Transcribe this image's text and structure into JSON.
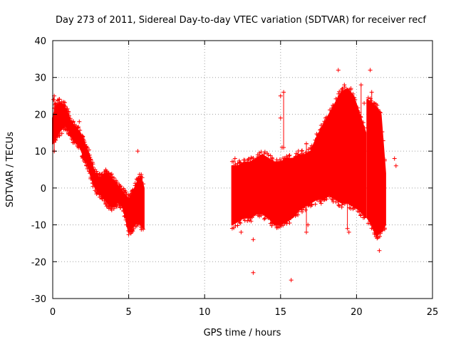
{
  "chart_data": {
    "type": "scatter",
    "title": "Day 273 of 2011, Sidereal Day-to-day VTEC variation (SDTVAR) for receiver recf",
    "xlabel": "GPS time / hours",
    "ylabel": "SDTVAR / TECUs",
    "xlim": [
      0,
      25
    ],
    "ylim": [
      -30,
      40
    ],
    "xticks": [
      0,
      5,
      10,
      15,
      20,
      25
    ],
    "yticks": [
      -30,
      -20,
      -10,
      0,
      10,
      20,
      30,
      40
    ],
    "xtick_labels": [
      "0",
      "5",
      "10",
      "15",
      "20",
      "25"
    ],
    "ytick_labels": [
      "-30",
      "-20",
      "-10",
      "0",
      "10",
      "20",
      "30",
      "40"
    ],
    "grid": true,
    "marker": "plus",
    "color": "#ff0000",
    "series": [
      {
        "name": "SDTVAR",
        "segments": [
          {
            "x": [
              0.0,
              0.2,
              0.4,
              0.6,
              0.8,
              1.0,
              1.2,
              1.4,
              1.6,
              1.8,
              2.0,
              2.2,
              2.4,
              2.6,
              2.8,
              3.0,
              3.2,
              3.4,
              3.6,
              3.8,
              4.0,
              4.2,
              4.4,
              4.6,
              4.8,
              5.0,
              5.2,
              5.4,
              5.6,
              5.8,
              6.0
            ],
            "ymin": [
              12,
              14,
              15,
              16,
              17,
              16,
              14,
              13,
              12,
              11,
              9,
              7,
              5,
              2,
              0,
              -1,
              -2,
              -3,
              -4,
              -5,
              -5,
              -4,
              -4,
              -5,
              -8,
              -12,
              -11,
              -10,
              -9,
              -10,
              -11
            ],
            "ymax": [
              19,
              22,
              23,
              23,
              22,
              20,
              18,
              17,
              16,
              15,
              13,
              11,
              9,
              6,
              4,
              3,
              3,
              4,
              4,
              3,
              2,
              1,
              0,
              -1,
              -2,
              -3,
              -2,
              0,
              2,
              3,
              0
            ]
          },
          {
            "x": [
              11.8,
              12.2,
              12.6,
              13.0,
              13.4,
              13.8,
              14.2,
              14.6,
              15.0,
              15.4,
              15.8,
              16.2,
              16.6,
              17.0,
              17.4,
              17.8,
              18.2,
              18.6,
              19.0,
              19.4,
              19.8,
              20.2,
              20.6
            ],
            "ymin": [
              -10,
              -9,
              -8,
              -8,
              -7,
              -7,
              -8,
              -10,
              -10,
              -9,
              -8,
              -6,
              -5,
              -4,
              -3,
              -3,
              -2,
              -3,
              -4,
              -4,
              -5,
              -6,
              -8
            ],
            "ymax": [
              6,
              6,
              7,
              7,
              8,
              9,
              8,
              7,
              7,
              8,
              8,
              9,
              9,
              10,
              14,
              17,
              20,
              23,
              26,
              27,
              25,
              20,
              15
            ]
          },
          {
            "x": [
              20.7,
              21.0,
              21.3,
              21.6,
              21.9
            ],
            "ymin": [
              -8,
              -10,
              -13,
              -12,
              -10
            ],
            "ymax": [
              24,
              23,
              22,
              20,
              4
            ]
          }
        ],
        "outliers": [
          {
            "x": 0.05,
            "y": 24
          },
          {
            "x": 0.1,
            "y": 10
          },
          {
            "x": 1.75,
            "y": 18
          },
          {
            "x": 5.6,
            "y": 10
          },
          {
            "x": 12.0,
            "y": 8
          },
          {
            "x": 12.4,
            "y": -12
          },
          {
            "x": 13.2,
            "y": -14
          },
          {
            "x": 13.2,
            "y": -23
          },
          {
            "x": 13.5,
            "y": 9
          },
          {
            "x": 15.0,
            "y": 25
          },
          {
            "x": 15.0,
            "y": 19
          },
          {
            "x": 15.1,
            "y": 11
          },
          {
            "x": 15.7,
            "y": -25
          },
          {
            "x": 16.7,
            "y": 12
          },
          {
            "x": 18.8,
            "y": 32
          },
          {
            "x": 20.9,
            "y": 32
          },
          {
            "x": 19.2,
            "y": 28
          },
          {
            "x": 20.5,
            "y": 23
          },
          {
            "x": 21.5,
            "y": -17
          },
          {
            "x": 21.2,
            "y": -8
          },
          {
            "x": 22.5,
            "y": 8
          },
          {
            "x": 22.6,
            "y": 6
          },
          {
            "x": 16.8,
            "y": -10
          },
          {
            "x": 19.5,
            "y": -12
          }
        ],
        "vertical_bars": [
          {
            "x": 15.2,
            "y1": 11,
            "y2": 26
          },
          {
            "x": 0.1,
            "y1": 10,
            "y2": 25
          },
          {
            "x": 16.7,
            "y1": -12,
            "y2": 12
          },
          {
            "x": 20.3,
            "y1": 2,
            "y2": 28
          },
          {
            "x": 21.0,
            "y1": 14,
            "y2": 26
          },
          {
            "x": 19.4,
            "y1": -11,
            "y2": 6
          }
        ]
      }
    ]
  }
}
